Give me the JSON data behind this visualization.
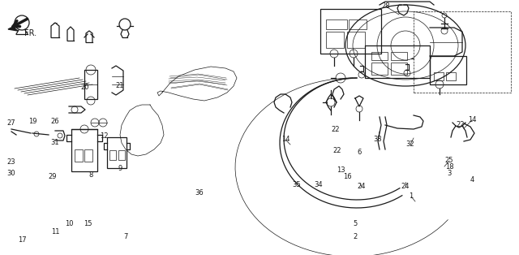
{
  "bg_color": "#ffffff",
  "line_color": "#1a1a1a",
  "lw_main": 0.9,
  "lw_thin": 0.5,
  "label_fontsize": 6.0,
  "fig_w": 6.4,
  "fig_h": 3.14,
  "dpi": 100,
  "labels": [
    [
      "17",
      27,
      296
    ],
    [
      "11",
      68,
      286
    ],
    [
      "10",
      85,
      276
    ],
    [
      "15",
      108,
      276
    ],
    [
      "7",
      155,
      292
    ],
    [
      "30",
      14,
      213
    ],
    [
      "29",
      65,
      218
    ],
    [
      "8",
      112,
      215
    ],
    [
      "9",
      148,
      207
    ],
    [
      "23",
      14,
      200
    ],
    [
      "31",
      68,
      175
    ],
    [
      "12",
      128,
      167
    ],
    [
      "27",
      14,
      152
    ],
    [
      "19",
      40,
      149
    ],
    [
      "26",
      68,
      149
    ],
    [
      "20",
      105,
      108
    ],
    [
      "21",
      148,
      106
    ],
    [
      "28",
      476,
      8
    ],
    [
      "14",
      352,
      172
    ],
    [
      "22",
      414,
      160
    ],
    [
      "22",
      416,
      185
    ],
    [
      "6",
      443,
      188
    ],
    [
      "33",
      466,
      172
    ],
    [
      "13",
      420,
      210
    ],
    [
      "16",
      428,
      218
    ],
    [
      "32",
      506,
      178
    ],
    [
      "22",
      568,
      154
    ],
    [
      "14",
      582,
      148
    ],
    [
      "35",
      366,
      228
    ],
    [
      "34",
      393,
      228
    ],
    [
      "36",
      246,
      238
    ],
    [
      "24",
      446,
      230
    ],
    [
      "24",
      500,
      230
    ],
    [
      "5",
      438,
      276
    ],
    [
      "2",
      438,
      291
    ],
    [
      "1",
      507,
      242
    ],
    [
      "25",
      554,
      198
    ],
    [
      "18",
      554,
      206
    ],
    [
      "3",
      554,
      214
    ],
    [
      "4",
      582,
      222
    ]
  ]
}
